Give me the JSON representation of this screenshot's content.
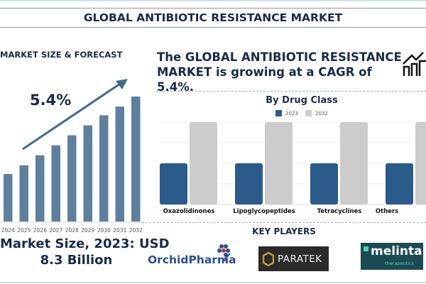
{
  "header": {
    "title": "GLOBAL ANTIBIOTIC RESISTANCE MARKET"
  },
  "left": {
    "section_title": "MARKET SIZE & FORECAST",
    "cagr": "5.4%",
    "market_size_line1": "Market Size, 2023: USD",
    "market_size_line2": "8.3 Billion"
  },
  "headline": {
    "line1": "The GLOBAL ANTIBIOTIC RESISTANCE",
    "line2": "MARKET is growing at a CAGR of 5.4%.",
    "icon": "growth-chart-icon"
  },
  "chart_data": [
    {
      "type": "bar",
      "title": "",
      "categories": [
        "2024",
        "2025",
        "2026",
        "2027",
        "2028",
        "2029",
        "2030",
        "2031",
        "2032"
      ],
      "values": [
        38,
        45,
        53,
        61,
        69,
        77,
        85,
        92,
        100
      ],
      "value_note": "relative height, no axis printed",
      "color": "#5f7f9e",
      "grid": false,
      "annotation": "5.4%"
    },
    {
      "type": "bar",
      "title": "By Drug Class",
      "categories": [
        "Oxazolidinones",
        "Lipoglycopeptides",
        "Tetracyclines",
        "Others"
      ],
      "series": [
        {
          "name": "2023",
          "values": [
            2,
            2,
            2,
            2
          ],
          "color": "#2a5b8a"
        },
        {
          "name": "2032",
          "values": [
            4,
            4,
            4,
            4
          ],
          "color": "#cccccc"
        }
      ],
      "ylim": [
        0,
        4
      ],
      "grid": true,
      "legend": "top"
    }
  ],
  "key_players": {
    "title": "KEY PLAYERS",
    "logos": [
      "OrchidPharma",
      "PARATEK",
      "melinta",
      "therapeutics"
    ]
  }
}
